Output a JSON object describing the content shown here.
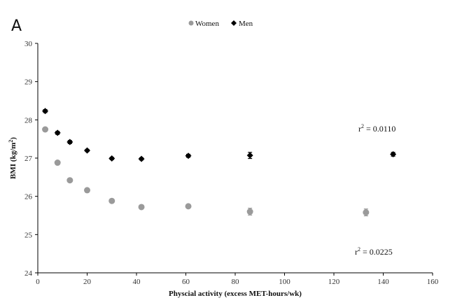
{
  "panel_label": "A",
  "chart_data": {
    "type": "scatter",
    "title": "",
    "xlabel": "Physcial activity (excess MET-hours/wk)",
    "ylabel_main": "BMI (kg/m",
    "ylabel_sup": "2",
    "ylabel_close": ")",
    "xlim": [
      0,
      160
    ],
    "ylim": [
      24,
      30
    ],
    "xticks": [
      0,
      20,
      40,
      60,
      80,
      100,
      120,
      140,
      160
    ],
    "yticks": [
      24,
      25,
      26,
      27,
      28,
      29,
      30
    ],
    "grid": false,
    "legend_position": "top-center",
    "series": [
      {
        "name": "Women",
        "marker": "circle",
        "color": "#9a9a9a",
        "x": [
          3,
          8,
          13,
          20,
          30,
          42,
          61,
          86,
          133
        ],
        "y": [
          27.75,
          26.88,
          26.42,
          26.16,
          25.88,
          25.72,
          25.74,
          25.6,
          25.58
        ],
        "err": [
          0.05,
          0.04,
          0.04,
          0.03,
          0.03,
          0.03,
          0.04,
          0.09,
          0.09
        ]
      },
      {
        "name": "Men",
        "marker": "diamond",
        "color": "#000000",
        "x": [
          3,
          8,
          13,
          20,
          30,
          42,
          61,
          86,
          144
        ],
        "y": [
          28.23,
          27.66,
          27.42,
          27.2,
          26.99,
          26.98,
          27.06,
          27.07,
          27.1
        ],
        "err": [
          0.04,
          0.04,
          0.04,
          0.03,
          0.03,
          0.03,
          0.04,
          0.08,
          0.05
        ]
      }
    ],
    "annotations": [
      {
        "base": "r",
        "sup": "2",
        "rest": " = 0.0110",
        "series": "Men"
      },
      {
        "base": "r",
        "sup": "2",
        "rest": " = 0.0225",
        "series": "Women"
      }
    ]
  }
}
